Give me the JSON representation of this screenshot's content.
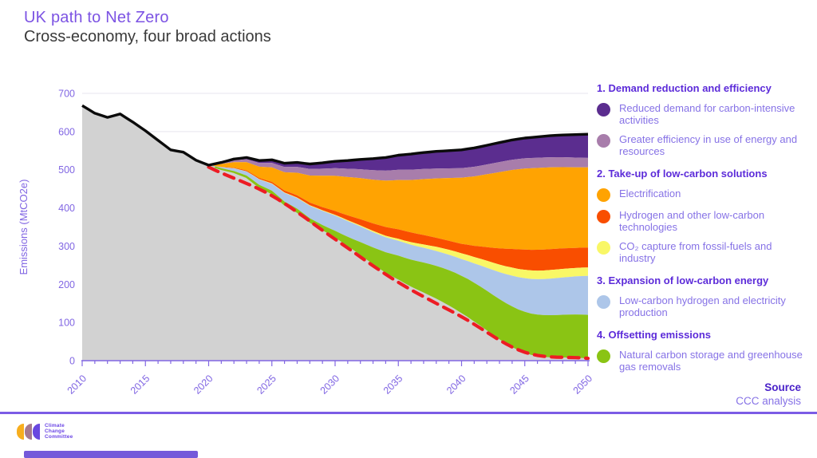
{
  "page": {
    "title": "UK path to Net Zero",
    "subtitle": "Cross-economy, four broad actions"
  },
  "source": {
    "label": "Source",
    "value": "CCC analysis"
  },
  "footer": {
    "logo_lines": [
      "Climate",
      "Change",
      "Committee"
    ]
  },
  "colors": {
    "title_purple": "#7C53E3",
    "header_purple": "#5c2bd9",
    "body_purple": "#8672e6",
    "axis_purple": "#8166e3",
    "divider_purple": "#7b5ce5",
    "gridline": "#eceaf2",
    "historical_gray": "#d2d2d2",
    "baseline_black": "#0b0b0b",
    "net_path_red": "#ed1c24"
  },
  "legend": {
    "sections": [
      {
        "title": "1. Demand reduction and efficiency",
        "items": [
          {
            "label": "Reduced demand for carbon-intensive activities",
            "color": "#5b2d8f"
          },
          {
            "label": "Greater efficiency in use of energy and resources",
            "color": "#a87dab"
          }
        ]
      },
      {
        "title": "2. Take-up of low-carbon solutions",
        "items": [
          {
            "label": "Electrification",
            "color": "#ffa302"
          },
          {
            "label": "Hydrogen and other low-carbon technologies",
            "color": "#f94e00"
          },
          {
            "label": "CO₂ capture from fossil-fuels and industry",
            "color": "#f9f766"
          }
        ]
      },
      {
        "title": "3. Expansion of low-carbon energy",
        "items": [
          {
            "label": "Low-carbon hydrogen and electricity production",
            "color": "#adc6e9"
          }
        ]
      },
      {
        "title": "4. Offsetting emissions",
        "items": [
          {
            "label": "Natural carbon storage and greenhouse gas removals",
            "color": "#8ac414"
          }
        ]
      }
    ]
  },
  "chart_data": {
    "type": "area",
    "title": "UK path to Net Zero — Cross-economy, four broad actions",
    "xlabel": "",
    "ylabel": "Emissions (MtCO2e)",
    "ylim": [
      0,
      700
    ],
    "yticks": [
      0,
      100,
      200,
      300,
      400,
      500,
      600,
      700
    ],
    "xlim": [
      2010,
      2050
    ],
    "xticks": [
      2010,
      2015,
      2020,
      2025,
      2030,
      2035,
      2040,
      2045,
      2050
    ],
    "grid": true,
    "legend_position": "right",
    "baseline": {
      "start_year": 2010,
      "values": [
        668,
        648,
        637,
        646,
        625,
        602,
        577,
        552,
        546,
        525,
        512,
        519,
        528,
        532,
        524,
        526,
        517,
        519,
        515,
        518,
        522,
        524,
        527,
        529,
        532,
        538,
        541,
        545,
        548,
        550,
        552,
        557,
        564,
        571,
        578,
        583,
        586,
        589,
        591,
        592,
        593
      ]
    },
    "knot_years": [
      2020,
      2025,
      2030,
      2035,
      2040,
      2045,
      2050
    ],
    "wedges": [
      {
        "name": "Reduced demand for carbon-intensive activities",
        "color": "#5b2d8f",
        "values": [
          0,
          8,
          18,
          38,
          48,
          53,
          62
        ]
      },
      {
        "name": "Greater efficiency in use of energy and resources",
        "color": "#a87dab",
        "values": [
          0,
          12,
          20,
          27,
          25,
          27,
          25
        ]
      },
      {
        "name": "Electrification",
        "color": "#ffa302",
        "values": [
          0,
          38,
          92,
          129,
          173,
          212,
          210
        ]
      },
      {
        "name": "Hydrogen and other low-carbon technologies",
        "color": "#f94e00",
        "values": [
          0,
          4,
          10,
          25,
          25,
          53,
          52
        ]
      },
      {
        "name": "CO₂ capture from fossil-fuels and industry",
        "color": "#f9f766",
        "values": [
          0,
          1,
          2,
          5,
          15,
          22,
          22
        ]
      },
      {
        "name": "Low-carbon hydrogen and electricity production",
        "color": "#adc6e9",
        "values": [
          0,
          18,
          40,
          39,
          44,
          88,
          102
        ]
      },
      {
        "name": "Natural carbon storage and greenhouse gas removals",
        "color": "#8ac414",
        "values": [
          0,
          7,
          15,
          60,
          95,
          105,
          112
        ]
      }
    ],
    "net_path": {
      "style": "dashed",
      "color": "#ed1c24",
      "years": [
        2019,
        2020,
        2025,
        2030,
        2035,
        2040,
        2045,
        2050
      ],
      "values": [
        525,
        507,
        432,
        318,
        205,
        115,
        22,
        6
      ]
    },
    "historical_fill": "#d2d2d2"
  }
}
